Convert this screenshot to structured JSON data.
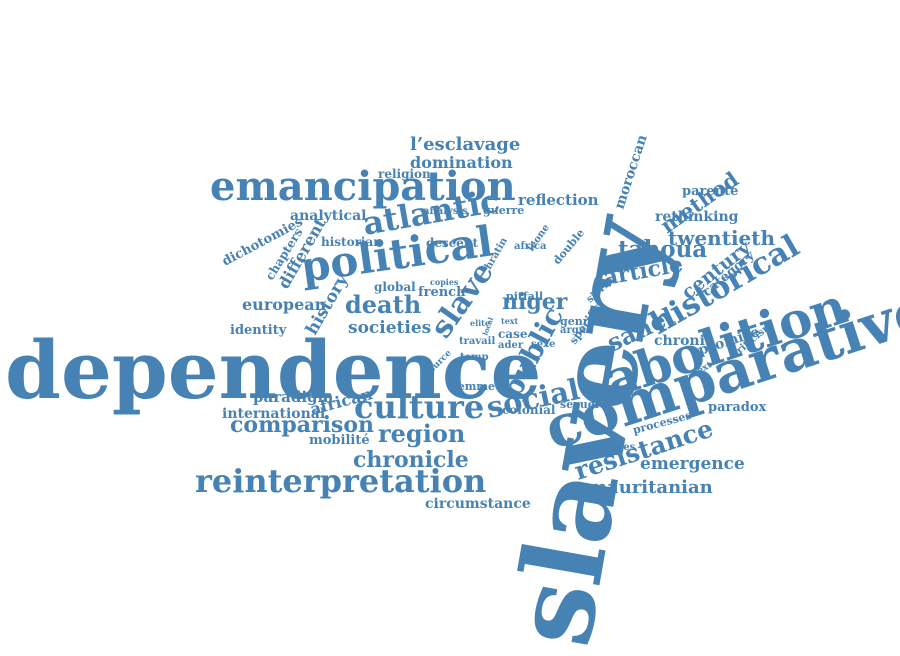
{
  "word_cloud": {
    "color": "#4682b4",
    "words": [
      {
        "text": "slavery"
      },
      {
        "text": "dependence"
      },
      {
        "text": "comparative"
      },
      {
        "text": "abolition"
      },
      {
        "text": "emancipation"
      },
      {
        "text": "political"
      },
      {
        "text": "reinterpretation"
      },
      {
        "text": "historical"
      },
      {
        "text": "atlantic"
      },
      {
        "text": "culture"
      },
      {
        "text": "social"
      },
      {
        "text": "public"
      },
      {
        "text": "resistance"
      },
      {
        "text": "slave"
      },
      {
        "text": "death"
      },
      {
        "text": "region"
      },
      {
        "text": "comparison"
      },
      {
        "text": "chronicle"
      },
      {
        "text": "tahoua"
      },
      {
        "text": "article"
      },
      {
        "text": "niger"
      },
      {
        "text": "sahel"
      },
      {
        "text": "method"
      },
      {
        "text": "twentieth"
      },
      {
        "text": "century"
      },
      {
        "text": "l’esclavage"
      },
      {
        "text": "domination"
      },
      {
        "text": "mauritanian"
      },
      {
        "text": "emergence"
      },
      {
        "text": "societies"
      },
      {
        "text": "history"
      },
      {
        "text": "different"
      },
      {
        "text": "european"
      },
      {
        "text": "african"
      },
      {
        "text": "paradigm"
      },
      {
        "text": "international"
      },
      {
        "text": "circumstance"
      },
      {
        "text": "analytical"
      },
      {
        "text": "reflection"
      },
      {
        "text": "rethinking"
      },
      {
        "text": "moroccan"
      },
      {
        "text": "chronic"
      },
      {
        "text": "promise"
      },
      {
        "text": "paradox"
      },
      {
        "text": "category"
      },
      {
        "text": "parenté"
      },
      {
        "text": "dichotomies"
      },
      {
        "text": "identity"
      },
      {
        "text": "mobilité"
      },
      {
        "text": "religion"
      },
      {
        "text": "chapters"
      },
      {
        "text": "historian"
      },
      {
        "text": "descent"
      },
      {
        "text": "global"
      },
      {
        "text": "french"
      },
      {
        "text": "colonial"
      },
      {
        "text": "femme"
      },
      {
        "text": "processes"
      },
      {
        "text": "statuses"
      },
      {
        "text": "sexuel"
      },
      {
        "text": "pitfall"
      },
      {
        "text": "analysis"
      },
      {
        "text": "guerre"
      },
      {
        "text": "africa"
      },
      {
        "text": "double"
      },
      {
        "text": "leone"
      },
      {
        "text": "hratin"
      },
      {
        "text": "sierra"
      },
      {
        "text": "criticism"
      },
      {
        "text": "context"
      },
      {
        "text": "specific"
      },
      {
        "text": "genre"
      },
      {
        "text": "case"
      },
      {
        "text": "travail"
      },
      {
        "text": "elite"
      },
      {
        "text": "text"
      },
      {
        "text": "ader"
      },
      {
        "text": "sexe"
      },
      {
        "text": "temp"
      },
      {
        "text": "source"
      },
      {
        "text": "copies"
      },
      {
        "text": "argue"
      },
      {
        "text": "local"
      }
    ]
  }
}
